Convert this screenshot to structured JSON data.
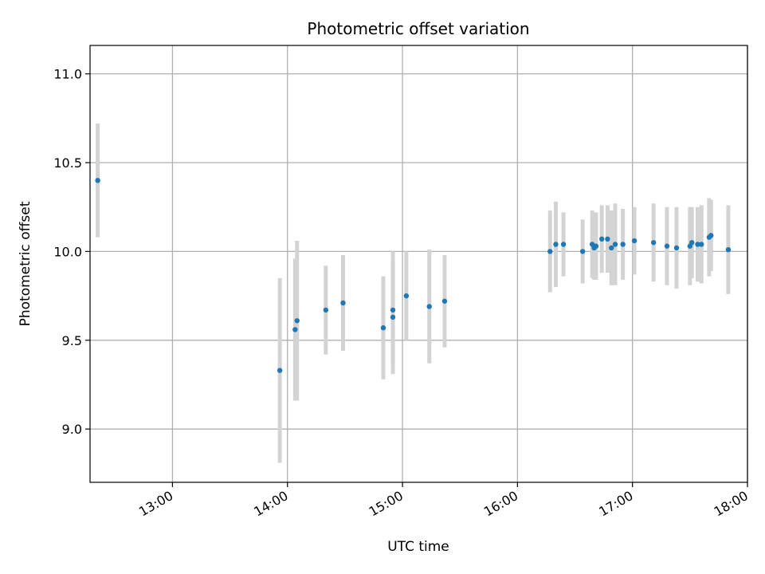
{
  "chart_data": {
    "type": "scatter",
    "title": "Photometric offset variation",
    "xlabel": "UTC time",
    "ylabel": "Photometric offset",
    "xlim": [
      "12:17",
      "18:00"
    ],
    "ylim": [
      8.7,
      11.16
    ],
    "x_ticks": [
      "13:00",
      "14:00",
      "15:00",
      "16:00",
      "17:00",
      "18:00"
    ],
    "y_ticks": [
      "9.0",
      "9.5",
      "10.0",
      "10.5",
      "11.0"
    ],
    "grid": true,
    "colors": {
      "points": "#1f77b4",
      "errorbars": "#d3d3d3",
      "grid": "#b0b0b0"
    },
    "series": [
      {
        "points": [
          {
            "x": "12:21",
            "y": 10.4,
            "err": 0.32
          },
          {
            "x": "13:56",
            "y": 9.33,
            "err": 0.52
          },
          {
            "x": "14:04",
            "y": 9.56,
            "err": 0.4
          },
          {
            "x": "14:05",
            "y": 9.61,
            "err": 0.45
          },
          {
            "x": "14:20",
            "y": 9.67,
            "err": 0.25
          },
          {
            "x": "14:29",
            "y": 9.71,
            "err": 0.27
          },
          {
            "x": "14:50",
            "y": 9.57,
            "err": 0.29
          },
          {
            "x": "14:55",
            "y": 9.63,
            "err": 0.32
          },
          {
            "x": "14:55",
            "y": 9.67,
            "err": 0.33
          },
          {
            "x": "15:02",
            "y": 9.75,
            "err": 0.25
          },
          {
            "x": "15:14",
            "y": 9.69,
            "err": 0.32
          },
          {
            "x": "15:22",
            "y": 9.72,
            "err": 0.26
          },
          {
            "x": "16:17",
            "y": 10.0,
            "err": 0.23
          },
          {
            "x": "16:20",
            "y": 10.04,
            "err": 0.24
          },
          {
            "x": "16:24",
            "y": 10.04,
            "err": 0.18
          },
          {
            "x": "16:34",
            "y": 10.0,
            "err": 0.18
          },
          {
            "x": "16:39",
            "y": 10.04,
            "err": 0.19
          },
          {
            "x": "16:40",
            "y": 10.02,
            "err": 0.18
          },
          {
            "x": "16:41",
            "y": 10.03,
            "err": 0.19
          },
          {
            "x": "16:44",
            "y": 10.07,
            "err": 0.19
          },
          {
            "x": "16:47",
            "y": 10.07,
            "err": 0.19
          },
          {
            "x": "16:49",
            "y": 10.02,
            "err": 0.21
          },
          {
            "x": "16:51",
            "y": 10.04,
            "err": 0.23
          },
          {
            "x": "16:55",
            "y": 10.04,
            "err": 0.2
          },
          {
            "x": "17:01",
            "y": 10.06,
            "err": 0.19
          },
          {
            "x": "17:11",
            "y": 10.05,
            "err": 0.22
          },
          {
            "x": "17:18",
            "y": 10.03,
            "err": 0.22
          },
          {
            "x": "17:23",
            "y": 10.02,
            "err": 0.23
          },
          {
            "x": "17:30",
            "y": 10.03,
            "err": 0.22
          },
          {
            "x": "17:31",
            "y": 10.05,
            "err": 0.2
          },
          {
            "x": "17:34",
            "y": 10.04,
            "err": 0.21
          },
          {
            "x": "17:36",
            "y": 10.04,
            "err": 0.22
          },
          {
            "x": "17:40",
            "y": 10.08,
            "err": 0.22
          },
          {
            "x": "17:41",
            "y": 10.09,
            "err": 0.2
          },
          {
            "x": "17:50",
            "y": 10.01,
            "err": 0.25
          }
        ]
      }
    ]
  }
}
